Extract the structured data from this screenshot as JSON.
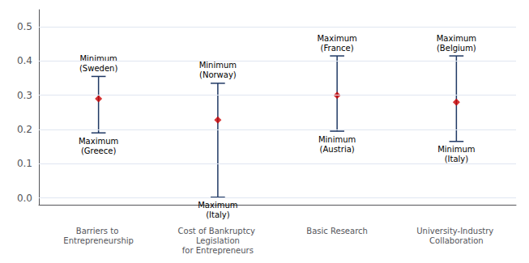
{
  "chart_data": {
    "type": "range",
    "categories": [
      "Barriers to Entrepreneurship",
      "Cost of Bankruptcy Legislation\nfor Entrepreneurs",
      "Basic Research",
      "University-Industry Collaboration"
    ],
    "series": [
      {
        "type": "range",
        "color": "#1f3864",
        "low": [
          0.19,
          0.002,
          0.195,
          0.165
        ],
        "high": [
          0.355,
          0.335,
          0.415,
          0.415
        ],
        "low_labels": [
          "Maximum\n(Greece)",
          "Maximum\n(Italy)",
          "Minimum\n(Austria)",
          "Minimum\n(Italy)"
        ],
        "high_labels": [
          "Minimum\n(Sweden)",
          "Minimum\n(Norway)",
          "Maximum\n(France)",
          "Maximum\n(Belgium)"
        ]
      },
      {
        "type": "scatter",
        "marker": "diamond",
        "color": "#cc0000",
        "values": [
          0.29,
          0.228,
          0.3,
          0.28
        ]
      }
    ],
    "ylim": [
      -0.02,
      0.55
    ],
    "yticks": [
      {
        "value": 0,
        "label": "0.0"
      },
      0.1,
      0.2,
      0.3,
      0.4,
      0.5
    ],
    "grid": true
  }
}
